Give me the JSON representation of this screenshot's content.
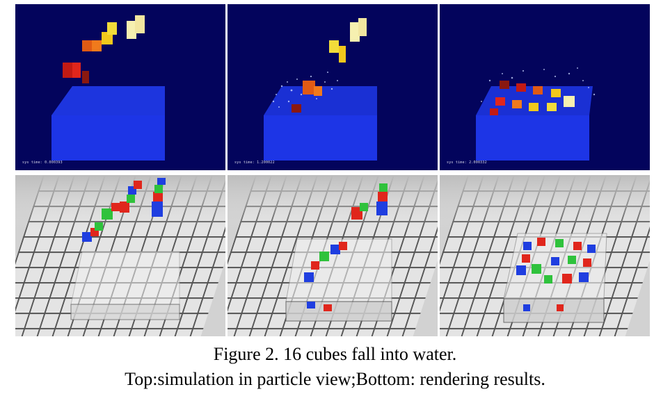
{
  "figure": {
    "top_row": {
      "description_key": "particle-view",
      "panels": [
        {
          "stamp": "sys time: 0.000393"
        },
        {
          "stamp": "sys time: 1.200022"
        },
        {
          "stamp": "sys time: 2.000332"
        }
      ]
    },
    "bottom_row": {
      "description_key": "rendering-results",
      "panels": [
        {},
        {},
        {}
      ]
    },
    "caption": {
      "line1": "Figure 2.    16 cubes fall into water.",
      "line2": "Top:simulation in particle view;Bottom: rendering results."
    }
  },
  "colors": {
    "particle_background": "#03045c",
    "water_blue": "#1d35e6",
    "cube_red": "#e0261c",
    "cube_green": "#2fc23c",
    "cube_blue": "#1f3ee0",
    "cube_yellow": "#f2dc3a"
  }
}
